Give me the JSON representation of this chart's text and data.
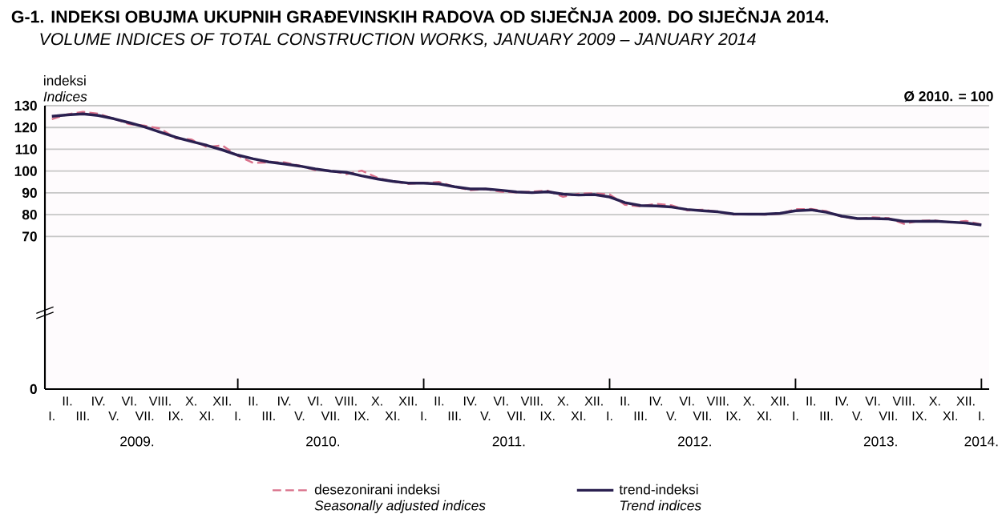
{
  "chart_data": {
    "type": "line",
    "title": "G-1. INDEKSI OBUJMA UKUPNIH GRAĐEVINSKIH RADOVA OD SIJEČNJA 2009. DO SIJEČNJA 2014.",
    "subtitle": "VOLUME INDICES OF TOTAL CONSTRUCTION WORKS, JANUARY 2009 – JANUARY 2014",
    "ylabel": "indeksi",
    "annotations": [
      "Ø 2010. = 100",
      "Indices",
      "Seasonally adjusted indices",
      "Trend indices",
      "2009.",
      "2010.",
      "2011.",
      "2012.",
      "2013.",
      "2014."
    ],
    "categories": [
      "I.",
      "II.",
      "III.",
      "IV.",
      "V.",
      "VI.",
      "VII.",
      "VIII.",
      "IX.",
      "X.",
      "XI.",
      "XII.",
      "I.",
      "II.",
      "III.",
      "IV.",
      "V.",
      "VI.",
      "VII.",
      "VIII.",
      "IX.",
      "X.",
      "XI.",
      "XII.",
      "I.",
      "II.",
      "III.",
      "IV.",
      "V.",
      "VI.",
      "VII.",
      "VIII.",
      "IX.",
      "X.",
      "XI.",
      "XII.",
      "I.",
      "II.",
      "III.",
      "IV.",
      "V.",
      "VI.",
      "VII.",
      "VIII.",
      "IX.",
      "X.",
      "XI.",
      "XII.",
      "I.",
      "II.",
      "III.",
      "IV.",
      "V.",
      "VI.",
      "VII.",
      "VIII.",
      "IX.",
      "X.",
      "XI.",
      "XII.",
      "I."
    ],
    "series": [
      {
        "name": "desezonirani indeksi",
        "color": "#d9708a",
        "line_style": "dashed",
        "values": [
          123.8,
          126,
          127.2,
          126.3,
          124,
          121.5,
          120.8,
          119.5,
          115,
          114.5,
          111,
          111.8,
          107,
          103.7,
          104,
          104,
          102.5,
          100.4,
          100.2,
          98.6,
          100.2,
          97,
          95.2,
          94.2,
          94.5,
          95,
          92.8,
          91.2,
          91.8,
          90.5,
          90.2,
          90.6,
          91,
          88.2,
          89.6,
          89.8,
          89.3,
          84.5,
          83.8,
          85,
          84.3,
          82,
          82.3,
          81.3,
          80,
          80.3,
          80,
          80.4,
          82.5,
          82.6,
          81.6,
          79,
          78,
          78.8,
          78.4,
          75.8,
          77.2,
          77.3,
          76.4,
          77.1,
          75.5
        ]
      },
      {
        "name": "trend-indeksi",
        "color": "#2a2050",
        "line_style": "solid",
        "values": [
          125.1,
          125.8,
          126.2,
          125.5,
          124,
          122.2,
          120.2,
          117.8,
          115.5,
          113.6,
          111.8,
          109.7,
          107.3,
          105.6,
          104.2,
          103.3,
          102.3,
          101,
          100,
          99.4,
          97.8,
          96.4,
          95.3,
          94.5,
          94.5,
          94.1,
          92.8,
          91.8,
          91.8,
          91.2,
          90.4,
          90.1,
          90.5,
          89.4,
          89,
          89.2,
          88.1,
          85.5,
          84.2,
          84,
          83.5,
          82.4,
          81.8,
          81.3,
          80.3,
          80.2,
          80.2,
          80.6,
          81.8,
          82.2,
          81.1,
          79.3,
          78.2,
          78.2,
          78,
          76.9,
          76.9,
          77,
          76.6,
          76.2,
          75.3
        ]
      }
    ],
    "ylim": [
      0,
      130
    ],
    "yticks": [
      0,
      70,
      80,
      90,
      100,
      110,
      120,
      130
    ],
    "grid": "y",
    "legend": "bottom"
  }
}
